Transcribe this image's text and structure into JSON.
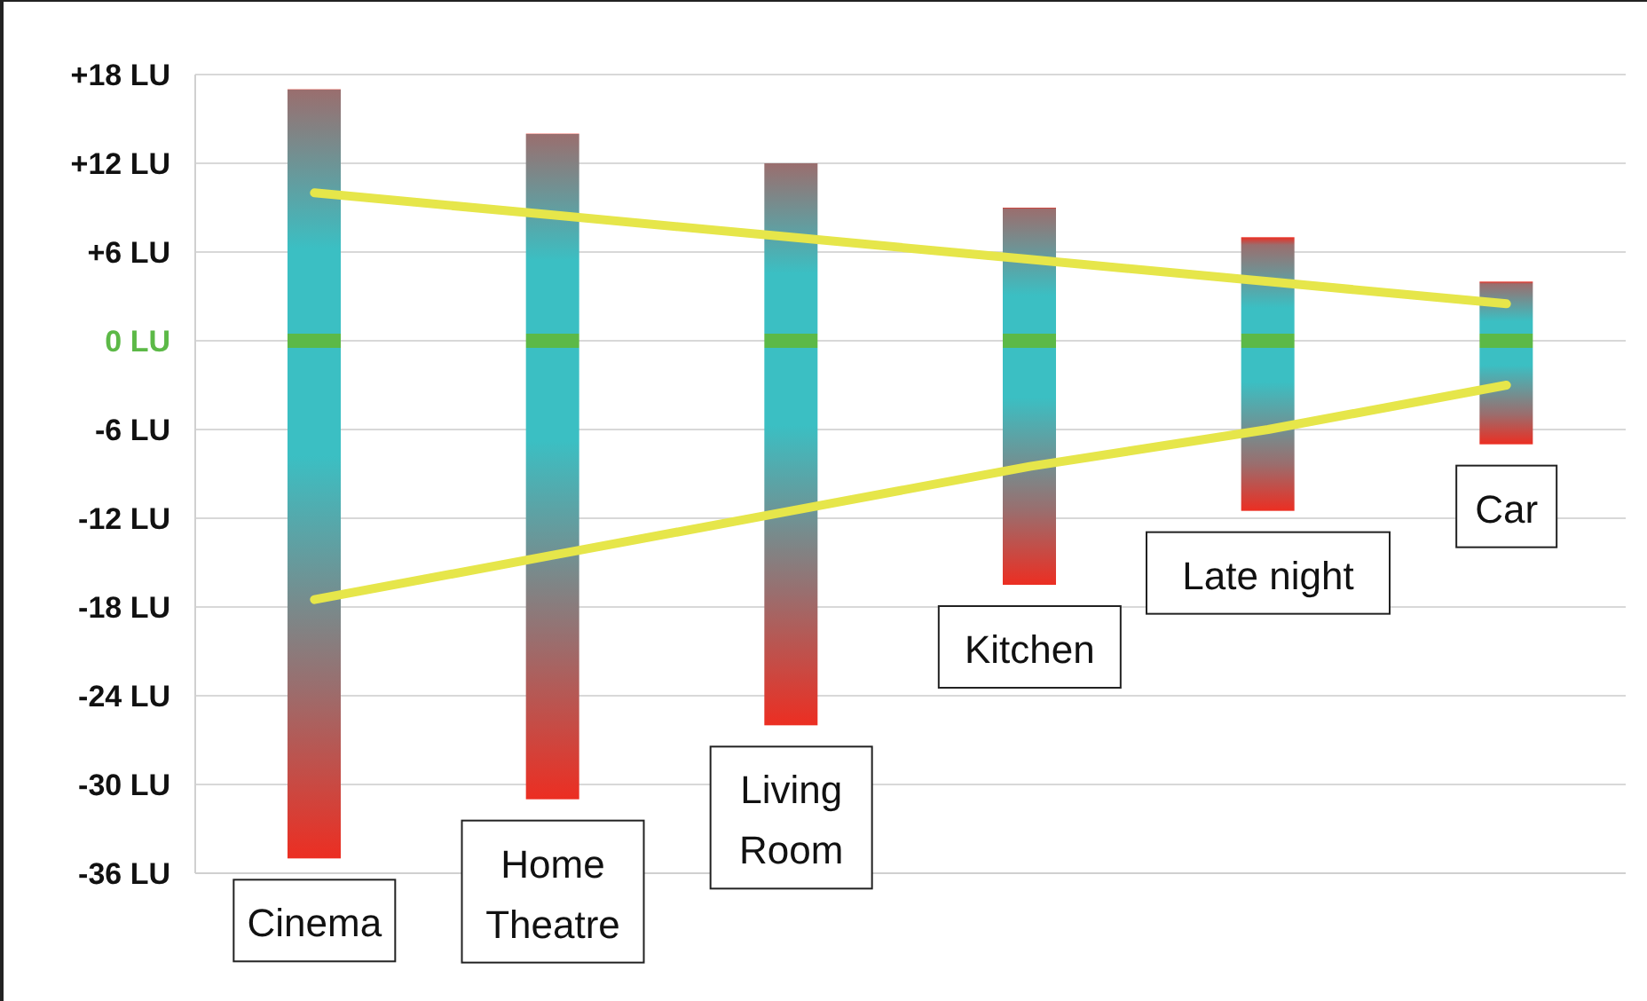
{
  "chart_data": {
    "type": "bar",
    "categories": [
      "Cinema",
      "Home Theatre",
      "Living Room",
      "Kitchen",
      "Late night",
      "Car"
    ],
    "series": [
      {
        "color": "#3bbfc3",
        "base": [
          -35,
          -31,
          -26,
          -16.5,
          -11.5,
          -7
        ],
        "values": [
          52,
          45,
          38,
          25.5,
          18.5,
          11
        ]
      },
      {
        "type": "line",
        "color": "#e6e64a",
        "values": [
          10,
          8.5,
          7,
          5.5,
          4,
          2.5
        ]
      },
      {
        "type": "line",
        "color": "#e6e64a",
        "values": [
          -17.5,
          -14.5,
          -11.5,
          -8.5,
          -6,
          -3
        ]
      }
    ],
    "ylim": [
      -36,
      18
    ],
    "yticks": [
      {
        "value": 18,
        "label": "+18 LU"
      },
      {
        "value": 12,
        "label": "+12 LU"
      },
      {
        "value": 6,
        "label": "+6 LU"
      },
      {
        "value": 0,
        "label": "0 LU"
      },
      {
        "value": -6,
        "label": "-6 LU"
      },
      {
        "value": -12,
        "label": "-12 LU"
      },
      {
        "value": -18,
        "label": "-18 LU"
      },
      {
        "value": -24,
        "label": "-24 LU"
      },
      {
        "value": -30,
        "label": "-30 LU"
      },
      {
        "value": -36,
        "label": "-36 LU"
      }
    ],
    "grid": "y"
  }
}
